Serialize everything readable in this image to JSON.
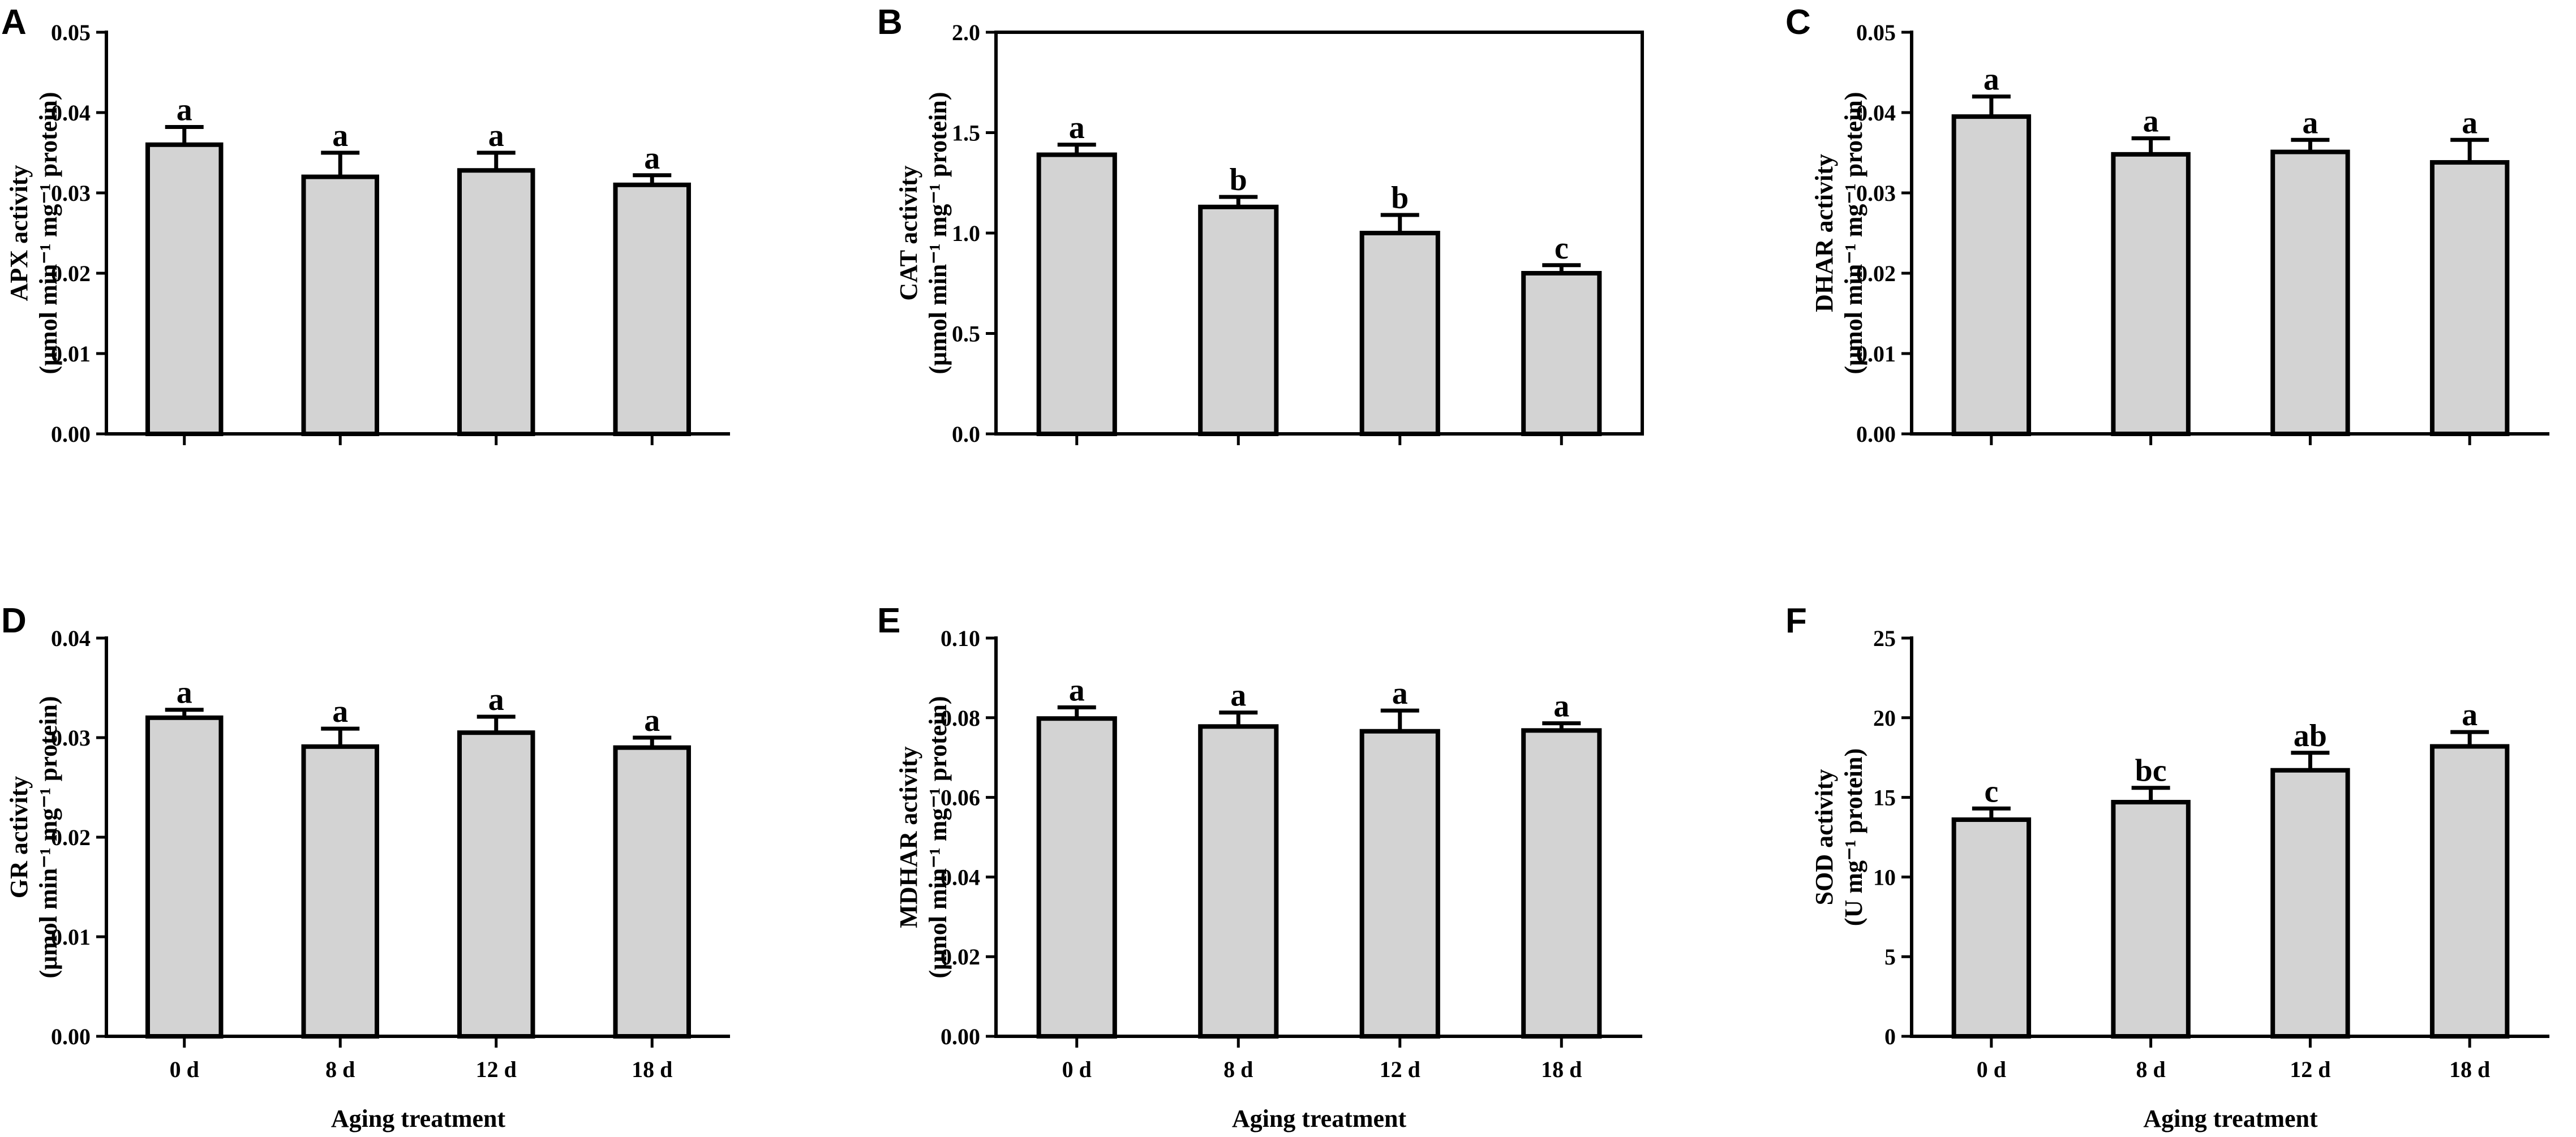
{
  "figure": {
    "x_axis_title": "Aging treatment"
  },
  "chart_data": [
    {
      "panel": "A",
      "type": "bar",
      "categories": [
        "0 d",
        "8 d",
        "12 d",
        "18 d"
      ],
      "values": [
        0.036,
        0.032,
        0.0328,
        0.031
      ],
      "errors": [
        0.0022,
        0.003,
        0.0022,
        0.0012
      ],
      "significance": [
        "a",
        "a",
        "a",
        "a"
      ],
      "ylabel_line1": "APX activity",
      "ylabel_line2": "(μmol min⁻¹ mg⁻¹ protein)",
      "xlabel": "",
      "ylim": [
        0,
        0.05
      ],
      "yticks": [
        0,
        0.01,
        0.02,
        0.03,
        0.04,
        0.05
      ],
      "ytick_labels": [
        "0.00",
        "0.01",
        "0.02",
        "0.03",
        "0.04",
        "0.05"
      ],
      "show_xtick_labels": false,
      "frame": "open"
    },
    {
      "panel": "B",
      "type": "bar",
      "categories": [
        "0 d",
        "8 d",
        "12 d",
        "18 d"
      ],
      "values": [
        1.39,
        1.13,
        1.0,
        0.8
      ],
      "errors": [
        0.05,
        0.05,
        0.09,
        0.04
      ],
      "significance": [
        "a",
        "b",
        "b",
        "c"
      ],
      "ylabel_line1": "CAT activity",
      "ylabel_line2": "(μmol min⁻¹ mg⁻¹ protein)",
      "xlabel": "",
      "ylim": [
        0,
        2.0
      ],
      "yticks": [
        0,
        0.5,
        1.0,
        1.5,
        2.0
      ],
      "ytick_labels": [
        "0.0",
        "0.5",
        "1.0",
        "1.5",
        "2.0"
      ],
      "show_xtick_labels": false,
      "frame": "box"
    },
    {
      "panel": "C",
      "type": "bar",
      "categories": [
        "0 d",
        "8 d",
        "12 d",
        "18 d"
      ],
      "values": [
        0.0395,
        0.0348,
        0.0351,
        0.0338
      ],
      "errors": [
        0.0025,
        0.002,
        0.0015,
        0.0028
      ],
      "significance": [
        "a",
        "a",
        "a",
        "a"
      ],
      "ylabel_line1": "DHAR activity",
      "ylabel_line2": "(μmol min⁻¹ mg⁻¹ protein)",
      "xlabel": "",
      "ylim": [
        0,
        0.05
      ],
      "yticks": [
        0,
        0.01,
        0.02,
        0.03,
        0.04,
        0.05
      ],
      "ytick_labels": [
        "0.00",
        "0.01",
        "0.02",
        "0.03",
        "0.04",
        "0.05"
      ],
      "show_xtick_labels": false,
      "frame": "open"
    },
    {
      "panel": "D",
      "type": "bar",
      "categories": [
        "0 d",
        "8 d",
        "12 d",
        "18 d"
      ],
      "values": [
        0.032,
        0.0291,
        0.0305,
        0.029
      ],
      "errors": [
        0.0008,
        0.0018,
        0.0016,
        0.001
      ],
      "significance": [
        "a",
        "a",
        "a",
        "a"
      ],
      "ylabel_line1": "GR activity",
      "ylabel_line2": "(μmol min⁻¹ mg⁻¹ protein)",
      "xlabel": "Aging treatment",
      "ylim": [
        0,
        0.04
      ],
      "yticks": [
        0,
        0.01,
        0.02,
        0.03,
        0.04
      ],
      "ytick_labels": [
        "0.00",
        "0.01",
        "0.02",
        "0.03",
        "0.04"
      ],
      "show_xtick_labels": true,
      "frame": "open"
    },
    {
      "panel": "E",
      "type": "bar",
      "categories": [
        "0 d",
        "8 d",
        "12 d",
        "18 d"
      ],
      "values": [
        0.0798,
        0.0778,
        0.0766,
        0.0768
      ],
      "errors": [
        0.0028,
        0.0035,
        0.0052,
        0.0018
      ],
      "significance": [
        "a",
        "a",
        "a",
        "a"
      ],
      "ylabel_line1": "MDHAR activity",
      "ylabel_line2": "(μmol min⁻¹ mg⁻¹ protein)",
      "xlabel": "Aging treatment",
      "ylim": [
        0,
        0.1
      ],
      "yticks": [
        0,
        0.02,
        0.04,
        0.06,
        0.08,
        0.1
      ],
      "ytick_labels": [
        "0.00",
        "0.02",
        "0.04",
        "0.06",
        "0.08",
        "0.10"
      ],
      "show_xtick_labels": true,
      "frame": "open"
    },
    {
      "panel": "F",
      "type": "bar",
      "categories": [
        "0 d",
        "8 d",
        "12 d",
        "18 d"
      ],
      "values": [
        13.6,
        14.7,
        16.7,
        18.2
      ],
      "errors": [
        0.7,
        0.9,
        1.1,
        0.9
      ],
      "significance": [
        "c",
        "bc",
        "ab",
        "a"
      ],
      "ylabel_line1": "SOD activity",
      "ylabel_line2": "(U mg⁻¹ protein)",
      "xlabel": "Aging treatment",
      "ylim": [
        0,
        25
      ],
      "yticks": [
        0,
        5,
        10,
        15,
        20,
        25
      ],
      "ytick_labels": [
        "0",
        "5",
        "10",
        "15",
        "20",
        "25"
      ],
      "show_xtick_labels": true,
      "frame": "open"
    }
  ]
}
